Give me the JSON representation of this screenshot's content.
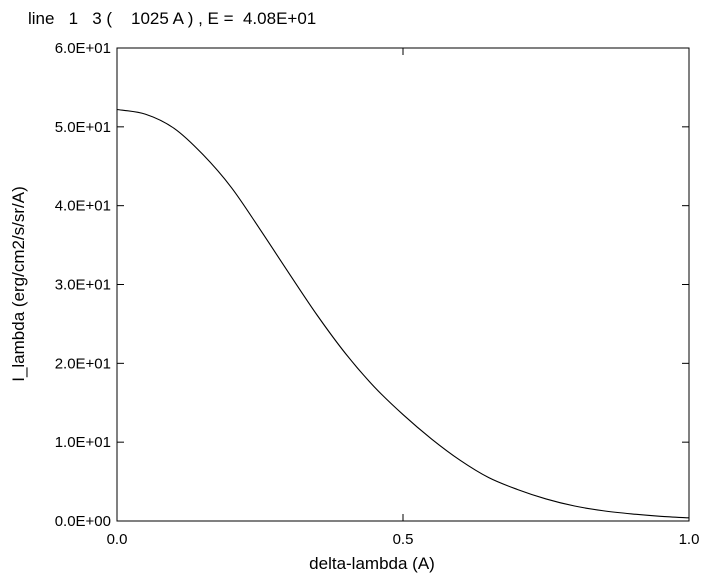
{
  "chart_data": {
    "type": "line",
    "title": "line   1   3 (    1025 A ) , E =  4.08E+01",
    "xlabel": "delta-lambda (A)",
    "ylabel": "I_lambda (erg/cm2/s/sr/A)",
    "xlim": [
      0.0,
      1.0
    ],
    "ylim": [
      0.0,
      60.0
    ],
    "x_ticks": [
      0.0,
      0.5,
      1.0
    ],
    "x_tick_labels": [
      "0.0",
      "0.5",
      "1.0"
    ],
    "y_ticks": [
      0,
      10,
      20,
      30,
      40,
      50,
      60
    ],
    "y_tick_labels": [
      "0.0E+00",
      "1.0E+01",
      "2.0E+01",
      "3.0E+01",
      "4.0E+01",
      "5.0E+01",
      "6.0E+01"
    ],
    "grid": false,
    "series": [
      {
        "x": [
          0.0,
          0.05,
          0.1,
          0.15,
          0.2,
          0.25,
          0.3,
          0.35,
          0.4,
          0.45,
          0.5,
          0.55,
          0.6,
          0.65,
          0.7,
          0.75,
          0.8,
          0.85,
          0.9,
          0.95,
          1.0
        ],
        "y": [
          52.2,
          51.6,
          49.8,
          46.5,
          42.3,
          37.0,
          31.5,
          26.1,
          21.2,
          17.0,
          13.5,
          10.4,
          7.7,
          5.5,
          4.0,
          2.8,
          1.9,
          1.3,
          0.9,
          0.6,
          0.4
        ]
      }
    ]
  }
}
